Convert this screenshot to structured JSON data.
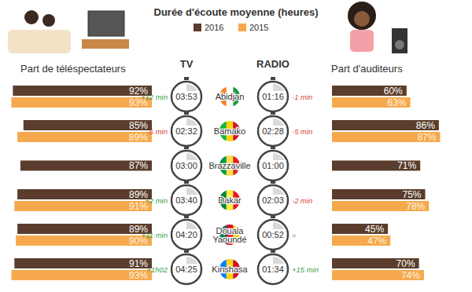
{
  "chart_data": {
    "type": "bar",
    "orientation": "horizontal",
    "title": "Durée d'écoute moyenne (heures)",
    "data_labels": true,
    "tick_labels": false,
    "categories": [
      "Abidjan",
      "Bamako",
      "Brazzaville",
      "Dakar",
      "Douala Yaoundé",
      "Kinshasa"
    ],
    "panels": [
      {
        "title": "Part de téléspectateurs",
        "medium": "TV",
        "xlim": [
          0,
          100
        ],
        "series": [
          {
            "name": "2016",
            "color": "#5a3d2c",
            "values": [
              92,
              85,
              87,
              89,
              89,
              91
            ],
            "value_labels": [
              "92%",
              "85%",
              "87%",
              "89%",
              "89%",
              "91%"
            ]
          },
          {
            "name": "2015",
            "color": "#f6a94c",
            "values": [
              93,
              89,
              null,
              91,
              90,
              93
            ],
            "value_labels": [
              "93%",
              "89%",
              null,
              "91%",
              "90%",
              "93%"
            ]
          }
        ],
        "duration_labels": [
          "03:53",
          "02:32",
          "03:00",
          "03:40",
          "04:20",
          "04:25"
        ],
        "change_labels": [
          "+12 min",
          "-6 min",
          null,
          "+2 min",
          "+11 min",
          "+1h02"
        ]
      },
      {
        "title": "Part d'auditeurs",
        "medium": "RADIO",
        "xlim": [
          0,
          100
        ],
        "series": [
          {
            "name": "2016",
            "color": "#5a3d2c",
            "values": [
              60,
              86,
              71,
              75,
              45,
              70
            ],
            "value_labels": [
              "60%",
              "86%",
              "71%",
              "75%",
              "45%",
              "70%"
            ]
          },
          {
            "name": "2015",
            "color": "#f6a94c",
            "values": [
              63,
              87,
              null,
              78,
              47,
              74
            ],
            "value_labels": [
              "63%",
              "87%",
              null,
              "78%",
              "47%",
              "74%"
            ]
          }
        ],
        "duration_labels": [
          "01:16",
          "02:28",
          "01:00",
          "02:03",
          "00:52",
          "01:34"
        ],
        "change_labels": [
          "-1 min",
          "-5 min",
          null,
          "-2 min",
          "=",
          "+15 min"
        ]
      }
    ]
  }
}
